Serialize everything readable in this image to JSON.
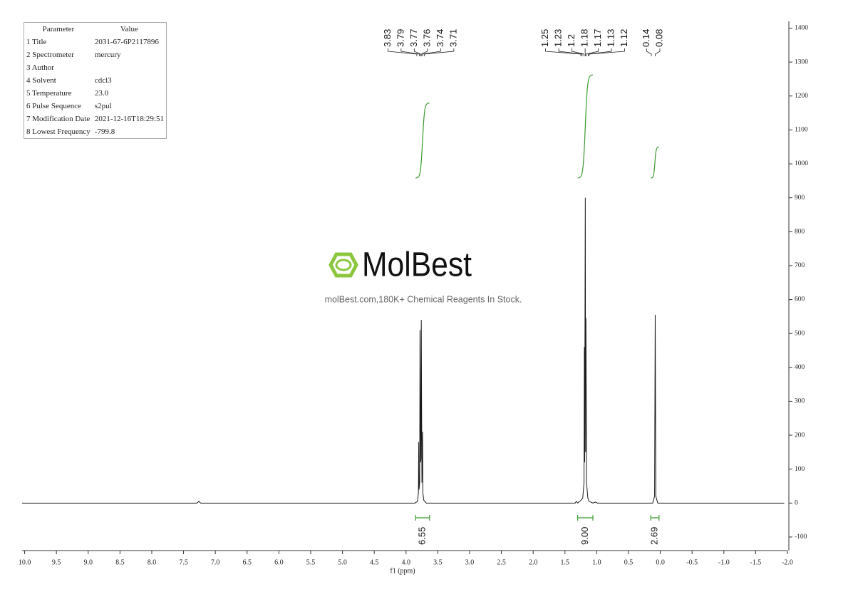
{
  "parameters": {
    "header": [
      "Parameter",
      "Value"
    ],
    "rows": [
      [
        "1 Title",
        "2031-67-6P2117896"
      ],
      [
        "2 Spectrometer",
        "mercury"
      ],
      [
        "3 Author"
      ],
      [
        "4 Solvent",
        "cdcl3"
      ],
      [
        "5 Temperature",
        "23.0"
      ],
      [
        "6 Pulse Sequence",
        "s2pul"
      ],
      [
        "7 Modification Date",
        "2021-12-16T18:29:51"
      ],
      [
        "8 Lowest Frequency",
        "-799.8"
      ]
    ]
  },
  "watermark": {
    "logo": "MolBest",
    "tagline": "molBest.com,180K+ Chemical Reagents In Stock."
  },
  "chart_data": {
    "type": "line",
    "x_label": "f1 (ppm)",
    "color": "#1a1a1a",
    "integral_color": "#3b9b2f",
    "x": [
      10.04,
      7.29,
      7.26,
      7.23,
      3.86,
      3.82,
      3.805,
      3.8,
      3.795,
      3.785,
      3.78,
      3.77,
      3.765,
      3.76,
      3.75,
      3.74,
      3.735,
      3.72,
      3.68,
      1.34,
      1.32,
      1.3,
      1.25,
      1.22,
      1.2,
      1.195,
      1.19,
      1.18,
      1.175,
      1.17,
      1.16,
      1.14,
      1.12,
      1.06,
      1.02,
      0.99,
      0.12,
      0.09,
      0.08,
      0.07,
      0.04,
      -1.95
    ],
    "values": [
      0,
      0,
      5,
      0,
      0,
      5,
      30,
      180,
      40,
      60,
      510,
      120,
      130,
      540,
      60,
      210,
      30,
      8,
      0,
      0,
      5,
      0,
      8,
      15,
      60,
      460,
      120,
      900,
      150,
      545,
      60,
      15,
      5,
      0,
      3,
      0,
      0,
      20,
      555,
      20,
      0,
      0
    ],
    "xlim": [
      10.04,
      -2.0
    ],
    "ylim": [
      -140,
      1420
    ],
    "xticks": [
      {
        "value": 10,
        "label": "10.0"
      },
      9.5,
      {
        "value": 9,
        "label": "9.0"
      },
      8.5,
      {
        "value": 8,
        "label": "8.0"
      },
      7.5,
      {
        "value": 7,
        "label": "7.0"
      },
      6.5,
      {
        "value": 6,
        "label": "6.0"
      },
      5.5,
      {
        "value": 5,
        "label": "5.0"
      },
      4.5,
      {
        "value": 4,
        "label": "4.0"
      },
      3.5,
      {
        "value": 3,
        "label": "3.0"
      },
      2.5,
      {
        "value": 2,
        "label": "2.0"
      },
      1.5,
      {
        "value": 1,
        "label": "1.0"
      },
      0.5,
      {
        "value": 0,
        "label": "0.0"
      },
      -0.5,
      {
        "value": -1,
        "label": "-1.0"
      },
      -1.5,
      {
        "value": -2,
        "label": "-2.0"
      }
    ],
    "yticks": [
      -100,
      0,
      100,
      200,
      300,
      400,
      500,
      600,
      700,
      800,
      900,
      1000,
      1100,
      1200,
      1300,
      1400
    ],
    "grid": false,
    "peak_labels": [
      [
        3.83,
        3.79,
        3.77,
        3.76,
        3.74,
        3.71
      ],
      [
        1.25,
        1.23,
        1.2,
        1.18,
        1.17,
        1.13,
        1.12
      ],
      [
        0.14,
        0.08
      ]
    ],
    "integrals": [
      {
        "range": [
          3.85,
          3.63
        ],
        "value": 6.55
      },
      {
        "range": [
          1.3,
          1.06
        ],
        "value": 9,
        "label": "9.00"
      },
      {
        "range": [
          0.15,
          0.02
        ],
        "value": 2.69
      }
    ]
  }
}
